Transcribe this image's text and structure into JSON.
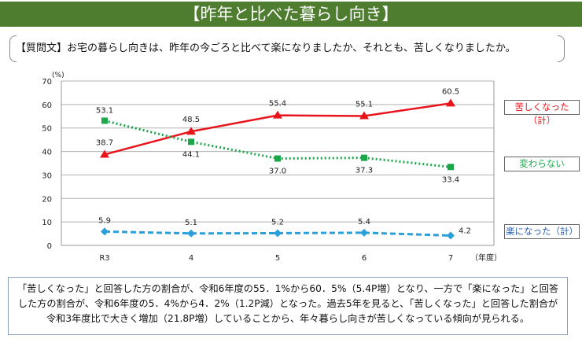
{
  "title": "【昨年と比べた暮らし向き】",
  "question": "【質問文】お宅の暮らし向きは、昨年の今ごろと比べて楽になりましたか、それとも、苦しくなりましたか。",
  "summary": "「苦しくなった」と回答した方の割合が、令和6年度の55．1%から60．5%（5.4P増）となり、一方で「楽になった」と回答した方の割合が、令和6年度の5．4%から4．2%（1.2P減）となった。過去5年を見ると、「苦しくなった」と回答した割合が令和3年度比で大きく増加（21.8P増）していることから、年々暮らし向きが苦しくなっている傾向が見られる。",
  "chart_data": {
    "type": "line",
    "categories": [
      "R3",
      "4",
      "5",
      "6",
      "7"
    ],
    "xlabel": "（年度）",
    "ylabel": "(%)",
    "ylim": [
      0,
      70
    ],
    "yticks": [
      "0",
      "10",
      "20",
      "30",
      "40",
      "50",
      "60",
      "70"
    ],
    "grid": true,
    "legend_placement": "right",
    "series": [
      {
        "name": "苦しくなった（計）",
        "values": [
          38.7,
          48.5,
          55.4,
          55.1,
          60.5
        ],
        "labels": [
          "38.7",
          "48.5",
          "55.4",
          "55.1",
          "60.5"
        ],
        "color": "#e8141c",
        "style": "solid",
        "marker": "triangle"
      },
      {
        "name": "変わらない",
        "values": [
          53.1,
          44.1,
          37.0,
          37.3,
          33.4
        ],
        "labels": [
          "53.1",
          "44.1",
          "37.0",
          "37.3",
          "33.4"
        ],
        "color": "#1aa84a",
        "style": "dotted",
        "marker": "square"
      },
      {
        "name": "楽になった（計）",
        "values": [
          5.9,
          5.1,
          5.2,
          5.4,
          4.2
        ],
        "labels": [
          "5.9",
          "5.1",
          "5.2",
          "5.4",
          "4.2"
        ],
        "color": "#2a9fd8",
        "style": "dashed",
        "marker": "diamond"
      }
    ]
  }
}
